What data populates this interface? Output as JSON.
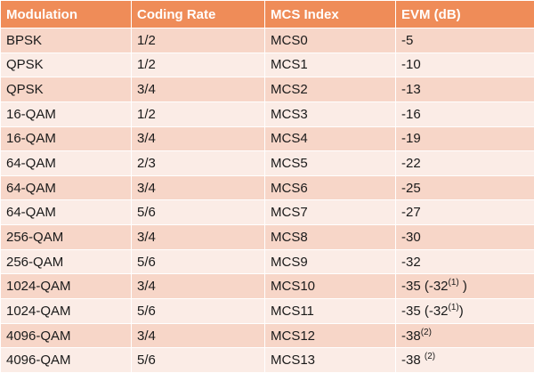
{
  "table": {
    "headers": [
      "Modulation",
      "Coding Rate",
      "MCS Index",
      "EVM (dB)"
    ],
    "rows": [
      {
        "modulation": "BPSK",
        "coding_rate": "1/2",
        "mcs": "MCS0",
        "evm": "-5",
        "evm_note": ""
      },
      {
        "modulation": "QPSK",
        "coding_rate": "1/2",
        "mcs": "MCS1",
        "evm": "-10",
        "evm_note": ""
      },
      {
        "modulation": "QPSK",
        "coding_rate": "3/4",
        "mcs": "MCS2",
        "evm": "-13",
        "evm_note": ""
      },
      {
        "modulation": "16-QAM",
        "coding_rate": "1/2",
        "mcs": "MCS3",
        "evm": "-16",
        "evm_note": ""
      },
      {
        "modulation": "16-QAM",
        "coding_rate": "3/4",
        "mcs": "MCS4",
        "evm": "-19",
        "evm_note": ""
      },
      {
        "modulation": "64-QAM",
        "coding_rate": "2/3",
        "mcs": "MCS5",
        "evm": "-22",
        "evm_note": ""
      },
      {
        "modulation": "64-QAM",
        "coding_rate": "3/4",
        "mcs": "MCS6",
        "evm": "-25",
        "evm_note": ""
      },
      {
        "modulation": "64-QAM",
        "coding_rate": "5/6",
        "mcs": "MCS7",
        "evm": "-27",
        "evm_note": ""
      },
      {
        "modulation": "256-QAM",
        "coding_rate": "3/4",
        "mcs": "MCS8",
        "evm": "-30",
        "evm_note": ""
      },
      {
        "modulation": "256-QAM",
        "coding_rate": "5/6",
        "mcs": "MCS9",
        "evm": "-32",
        "evm_note": ""
      },
      {
        "modulation": "1024-QAM",
        "coding_rate": "3/4",
        "mcs": "MCS10",
        "evm": "-35 (-32",
        "evm_note": "(1)",
        "evm_suffix": " )"
      },
      {
        "modulation": "1024-QAM",
        "coding_rate": "5/6",
        "mcs": "MCS11",
        "evm": "-35 (-32",
        "evm_note": "(1)",
        "evm_suffix": ")"
      },
      {
        "modulation": "4096-QAM",
        "coding_rate": "3/4",
        "mcs": "MCS12",
        "evm": "-38",
        "evm_note": "(2)"
      },
      {
        "modulation": "4096-QAM",
        "coding_rate": "5/6",
        "mcs": "MCS13",
        "evm": "-38 ",
        "evm_note": "(2)"
      }
    ]
  },
  "colors": {
    "header_bg": "#ef8c58",
    "row_dark": "#f7d6c8",
    "row_light": "#fbece6"
  }
}
